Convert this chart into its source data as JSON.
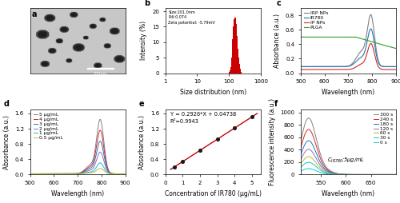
{
  "fig_width": 5.0,
  "fig_height": 2.54,
  "dpi": 100,
  "panel_labels": [
    "a",
    "b",
    "c",
    "d",
    "e",
    "f"
  ],
  "panel_label_fontsize": 7,
  "panel_label_weight": "bold",
  "b_text_lines": [
    "Size:201.0nm",
    "PdI:0.074",
    "Zeta potential: -5.79mV"
  ],
  "b_bar_color": "#cc0000",
  "b_xlabel": "Size distribution (nm)",
  "b_ylabel": "Intensity (%)",
  "b_yticks": [
    0,
    5,
    10,
    15,
    20
  ],
  "b_ylim": [
    0,
    21
  ],
  "b_bar_centers": [
    105,
    112,
    119,
    126,
    133,
    140,
    148,
    156,
    165,
    174,
    184,
    194,
    205,
    217,
    229,
    242
  ],
  "b_bar_heights": [
    0.5,
    1.0,
    2.0,
    5.0,
    11.0,
    15.0,
    17.5,
    18.0,
    16.0,
    12.0,
    8.0,
    5.0,
    3.0,
    1.5,
    0.8,
    0.3
  ],
  "c_colors": [
    "#808080",
    "#1f77b4",
    "#d62728",
    "#2ca02c"
  ],
  "c_labels": [
    "IRP NPs",
    "IR780",
    "IP NPs",
    "PLGA"
  ],
  "c_xlabel": "Wavelength (nm)",
  "c_ylabel": "Absorbance (a.u.)",
  "c_ylim": [
    0.0,
    0.9
  ],
  "c_yticks": [
    0.0,
    0.2,
    0.4,
    0.6,
    0.8
  ],
  "c_xlim": [
    500,
    900
  ],
  "d_colors": [
    "#808080",
    "#d62728",
    "#1f77b4",
    "#9467bd",
    "#17becf",
    "#bcbd22"
  ],
  "d_labels": [
    "5 μg/mL",
    "4 μg/mL",
    "3 μg/mL",
    "2 μg/mL",
    "1 μg/mL",
    "0.5 μg/mL"
  ],
  "d_xlabel": "Wavelength (nm)",
  "d_ylabel": "Absorbance (a.u.)",
  "d_ylim": [
    0.0,
    1.7
  ],
  "d_yticks": [
    0.0,
    0.4,
    0.8,
    1.2,
    1.6
  ],
  "d_xlim": [
    500,
    900
  ],
  "e_x": [
    0.5,
    1.0,
    2.0,
    3.0,
    4.0,
    5.0
  ],
  "e_y": [
    0.194,
    0.341,
    0.633,
    0.925,
    1.215,
    1.506
  ],
  "e_scatter_color": "#1a1a1a",
  "e_line_color": "#cc0000",
  "e_equation": "Y = 0.2926*X + 0.04738",
  "e_r2": "R²=0.9943",
  "e_xlabel": "Concentration of IR780 (μg/mL)",
  "e_ylabel": "Absorbance (a.u.)",
  "e_xlim": [
    0,
    5.5
  ],
  "e_ylim": [
    0,
    1.7
  ],
  "e_yticks": [
    0.0,
    0.4,
    0.8,
    1.2,
    1.6
  ],
  "e_xticks": [
    0,
    1,
    2,
    3,
    4,
    5
  ],
  "f_colors": [
    "#808080",
    "#d62728",
    "#1f77b4",
    "#9467bd",
    "#bcbd22",
    "#17becf",
    "#00ced1"
  ],
  "f_labels": [
    "300 s",
    "240 s",
    "180 s",
    "120 s",
    "60 s",
    "30 s",
    "0 s"
  ],
  "f_xlabel": "Wavelength (nm)",
  "f_ylabel": "Fluorescence intensity (a.u.)",
  "f_ylim": [
    0,
    1050
  ],
  "f_yticks": [
    0,
    200,
    400,
    600,
    800,
    1000
  ],
  "f_xlim": [
    510,
    700
  ],
  "f_xticks": [
    550,
    600,
    650
  ],
  "tick_fontsize": 5,
  "label_fontsize": 5.5,
  "legend_fontsize": 4.2,
  "annot_fontsize": 4.8
}
